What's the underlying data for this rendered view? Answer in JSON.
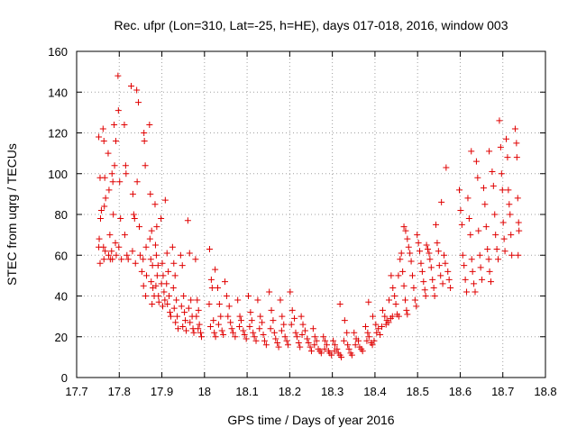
{
  "chart_data": {
    "type": "scatter",
    "title": "Rec. ufpr (Lon=310, Lat=-25, h=HE), days 017-018, 2016, window 003",
    "xlabel": "GPS time / Days of year 2016",
    "ylabel": "STEC from uqrg / TECUs",
    "xlim": [
      17.7,
      18.8
    ],
    "ylim": [
      0,
      160
    ],
    "xticks": [
      "17.7",
      "17.8",
      "17.9",
      "18",
      "18.1",
      "18.2",
      "18.3",
      "18.4",
      "18.5",
      "18.6",
      "18.7",
      "18.8"
    ],
    "yticks": [
      "0",
      "20",
      "40",
      "60",
      "80",
      "100",
      "120",
      "140",
      "160"
    ],
    "grid": true,
    "marker": "plus",
    "color": "#e00000",
    "points": [
      [
        17.752,
        118
      ],
      [
        17.755,
        98
      ],
      [
        17.758,
        82
      ],
      [
        17.756,
        78
      ],
      [
        17.753,
        68
      ],
      [
        17.752,
        64
      ],
      [
        17.755,
        56
      ],
      [
        17.762,
        122
      ],
      [
        17.764,
        116
      ],
      [
        17.766,
        98
      ],
      [
        17.768,
        88
      ],
      [
        17.765,
        84
      ],
      [
        17.767,
        62
      ],
      [
        17.763,
        64
      ],
      [
        17.764,
        58
      ],
      [
        17.774,
        110
      ],
      [
        17.776,
        92
      ],
      [
        17.778,
        70
      ],
      [
        17.775,
        60
      ],
      [
        17.779,
        58
      ],
      [
        17.783,
        100
      ],
      [
        17.785,
        96
      ],
      [
        17.782,
        62
      ],
      [
        17.784,
        58
      ],
      [
        17.788,
        124
      ],
      [
        17.789,
        104
      ],
      [
        17.792,
        116
      ],
      [
        17.786,
        80
      ],
      [
        17.791,
        66
      ],
      [
        17.793,
        60
      ],
      [
        17.797,
        148
      ],
      [
        17.798,
        131
      ],
      [
        17.801,
        96
      ],
      [
        17.803,
        78
      ],
      [
        17.799,
        64
      ],
      [
        17.805,
        58
      ],
      [
        17.812,
        124
      ],
      [
        17.815,
        104
      ],
      [
        17.816,
        100
      ],
      [
        17.813,
        70
      ],
      [
        17.818,
        60
      ],
      [
        17.821,
        58
      ],
      [
        17.828,
        143
      ],
      [
        17.832,
        90
      ],
      [
        17.834,
        80
      ],
      [
        17.836,
        78
      ],
      [
        17.831,
        62
      ],
      [
        17.838,
        56
      ],
      [
        17.841,
        141
      ],
      [
        17.845,
        135
      ],
      [
        17.842,
        96
      ],
      [
        17.847,
        74
      ],
      [
        17.849,
        60
      ],
      [
        17.853,
        52
      ],
      [
        17.858,
        120
      ],
      [
        17.859,
        116
      ],
      [
        17.861,
        104
      ],
      [
        17.863,
        64
      ],
      [
        17.856,
        58
      ],
      [
        17.864,
        50
      ],
      [
        17.857,
        45
      ],
      [
        17.862,
        40
      ],
      [
        17.871,
        124
      ],
      [
        17.873,
        90
      ],
      [
        17.876,
        72
      ],
      [
        17.872,
        68
      ],
      [
        17.874,
        58
      ],
      [
        17.878,
        55
      ],
      [
        17.875,
        47
      ],
      [
        17.879,
        44
      ],
      [
        17.882,
        40
      ],
      [
        17.877,
        36
      ],
      [
        17.884,
        85
      ],
      [
        17.888,
        74
      ],
      [
        17.885,
        65
      ],
      [
        17.887,
        60
      ],
      [
        17.891,
        55
      ],
      [
        17.889,
        50
      ],
      [
        17.886,
        45
      ],
      [
        17.892,
        40
      ],
      [
        17.893,
        37
      ],
      [
        17.898,
        78
      ],
      [
        17.901,
        56
      ],
      [
        17.903,
        50
      ],
      [
        17.899,
        46
      ],
      [
        17.905,
        42
      ],
      [
        17.907,
        38
      ],
      [
        17.902,
        35
      ],
      [
        17.908,
        87
      ],
      [
        17.912,
        61
      ],
      [
        17.915,
        52
      ],
      [
        17.911,
        46
      ],
      [
        17.917,
        40
      ],
      [
        17.913,
        36
      ],
      [
        17.919,
        32
      ],
      [
        17.921,
        30
      ],
      [
        17.925,
        64
      ],
      [
        17.928,
        56
      ],
      [
        17.931,
        50
      ],
      [
        17.927,
        44
      ],
      [
        17.934,
        38
      ],
      [
        17.929,
        34
      ],
      [
        17.936,
        30
      ],
      [
        17.932,
        27
      ],
      [
        17.938,
        24
      ],
      [
        17.944,
        60
      ],
      [
        17.948,
        55
      ],
      [
        17.951,
        40
      ],
      [
        17.946,
        35
      ],
      [
        17.953,
        32
      ],
      [
        17.955,
        28
      ],
      [
        17.949,
        25
      ],
      [
        17.957,
        23
      ],
      [
        17.961,
        77
      ],
      [
        17.965,
        61
      ],
      [
        17.968,
        38
      ],
      [
        17.963,
        34
      ],
      [
        17.971,
        30
      ],
      [
        17.966,
        27
      ],
      [
        17.973,
        24
      ],
      [
        17.975,
        22
      ],
      [
        17.979,
        58
      ],
      [
        17.983,
        38
      ],
      [
        17.986,
        33
      ],
      [
        17.981,
        30
      ],
      [
        17.988,
        26
      ],
      [
        17.985,
        24
      ],
      [
        17.991,
        22
      ],
      [
        17.993,
        20
      ],
      [
        18.012,
        63
      ],
      [
        18.016,
        48
      ],
      [
        18.018,
        44
      ],
      [
        18.011,
        36
      ],
      [
        18.021,
        28
      ],
      [
        18.014,
        25
      ],
      [
        18.023,
        22
      ],
      [
        18.026,
        20
      ],
      [
        18.025,
        53
      ],
      [
        18.031,
        44
      ],
      [
        18.035,
        36
      ],
      [
        18.038,
        30
      ],
      [
        18.033,
        26
      ],
      [
        18.041,
        23
      ],
      [
        18.044,
        21
      ],
      [
        18.048,
        47
      ],
      [
        18.052,
        40
      ],
      [
        18.058,
        35
      ],
      [
        18.055,
        30
      ],
      [
        18.061,
        27
      ],
      [
        18.064,
        24
      ],
      [
        18.067,
        22
      ],
      [
        18.072,
        20
      ],
      [
        18.078,
        38
      ],
      [
        18.083,
        30
      ],
      [
        18.086,
        28
      ],
      [
        18.082,
        25
      ],
      [
        18.091,
        23
      ],
      [
        18.094,
        21
      ],
      [
        18.098,
        19
      ],
      [
        18.103,
        40
      ],
      [
        18.108,
        32
      ],
      [
        18.111,
        28
      ],
      [
        18.106,
        25
      ],
      [
        18.114,
        22
      ],
      [
        18.117,
        20
      ],
      [
        18.121,
        18
      ],
      [
        18.125,
        38
      ],
      [
        18.131,
        30
      ],
      [
        18.135,
        27
      ],
      [
        18.129,
        24
      ],
      [
        18.138,
        21
      ],
      [
        18.141,
        18
      ],
      [
        18.145,
        16
      ],
      [
        18.152,
        42
      ],
      [
        18.157,
        33
      ],
      [
        18.161,
        28
      ],
      [
        18.155,
        24
      ],
      [
        18.164,
        22
      ],
      [
        18.167,
        19
      ],
      [
        18.171,
        17
      ],
      [
        18.174,
        15
      ],
      [
        18.178,
        38
      ],
      [
        18.182,
        30
      ],
      [
        18.186,
        26
      ],
      [
        18.181,
        23
      ],
      [
        18.189,
        20
      ],
      [
        18.193,
        18
      ],
      [
        18.196,
        16
      ],
      [
        18.201,
        42
      ],
      [
        18.206,
        33
      ],
      [
        18.211,
        29
      ],
      [
        18.204,
        26
      ],
      [
        18.214,
        22
      ],
      [
        18.217,
        20
      ],
      [
        18.221,
        17
      ],
      [
        18.224,
        15
      ],
      [
        18.227,
        30
      ],
      [
        18.231,
        26
      ],
      [
        18.236,
        23
      ],
      [
        18.229,
        21
      ],
      [
        18.241,
        19
      ],
      [
        18.244,
        17
      ],
      [
        18.248,
        15
      ],
      [
        18.251,
        13
      ],
      [
        18.255,
        24
      ],
      [
        18.259,
        20
      ],
      [
        18.263,
        18
      ],
      [
        18.258,
        16
      ],
      [
        18.267,
        14
      ],
      [
        18.271,
        13
      ],
      [
        18.274,
        12
      ],
      [
        18.279,
        20
      ],
      [
        18.283,
        18
      ],
      [
        18.287,
        16
      ],
      [
        18.282,
        14
      ],
      [
        18.291,
        13
      ],
      [
        18.294,
        12
      ],
      [
        18.298,
        11
      ],
      [
        18.302,
        18
      ],
      [
        18.306,
        16
      ],
      [
        18.311,
        14
      ],
      [
        18.305,
        13
      ],
      [
        18.314,
        12
      ],
      [
        18.318,
        11
      ],
      [
        18.321,
        10
      ],
      [
        18.318,
        36
      ],
      [
        18.329,
        28
      ],
      [
        18.334,
        22
      ],
      [
        18.327,
        18
      ],
      [
        18.336,
        16
      ],
      [
        18.339,
        14
      ],
      [
        18.343,
        12
      ],
      [
        18.346,
        11
      ],
      [
        18.351,
        22
      ],
      [
        18.356,
        19
      ],
      [
        18.361,
        18
      ],
      [
        18.354,
        16
      ],
      [
        18.364,
        15
      ],
      [
        18.368,
        14
      ],
      [
        18.371,
        13
      ],
      [
        18.378,
        25
      ],
      [
        18.383,
        22
      ],
      [
        18.386,
        20
      ],
      [
        18.381,
        18
      ],
      [
        18.391,
        17
      ],
      [
        18.394,
        16
      ],
      [
        18.398,
        18
      ],
      [
        18.385,
        37
      ],
      [
        18.395,
        30
      ],
      [
        18.402,
        26
      ],
      [
        18.408,
        24
      ],
      [
        18.404,
        22
      ],
      [
        18.412,
        21
      ],
      [
        18.416,
        25
      ],
      [
        18.418,
        33
      ],
      [
        18.423,
        30
      ],
      [
        18.428,
        28
      ],
      [
        18.426,
        26
      ],
      [
        18.432,
        27
      ],
      [
        18.437,
        29
      ],
      [
        18.441,
        30
      ],
      [
        18.433,
        38
      ],
      [
        18.438,
        50
      ],
      [
        18.442,
        44
      ],
      [
        18.446,
        40
      ],
      [
        18.449,
        36
      ],
      [
        18.452,
        31
      ],
      [
        18.456,
        30
      ],
      [
        18.455,
        50
      ],
      [
        18.459,
        58
      ],
      [
        18.462,
        61
      ],
      [
        18.465,
        52
      ],
      [
        18.468,
        45
      ],
      [
        18.471,
        38
      ],
      [
        18.474,
        33
      ],
      [
        18.476,
        31
      ],
      [
        18.468,
        74
      ],
      [
        18.472,
        72
      ],
      [
        18.476,
        68
      ],
      [
        18.479,
        64
      ],
      [
        18.482,
        61
      ],
      [
        18.485,
        57
      ],
      [
        18.488,
        50
      ],
      [
        18.491,
        44
      ],
      [
        18.494,
        38
      ],
      [
        18.497,
        35
      ],
      [
        18.499,
        70
      ],
      [
        18.502,
        66
      ],
      [
        18.505,
        62
      ],
      [
        18.508,
        56
      ],
      [
        18.511,
        52
      ],
      [
        18.514,
        47
      ],
      [
        18.517,
        43
      ],
      [
        18.519,
        40
      ],
      [
        18.521,
        65
      ],
      [
        18.524,
        63
      ],
      [
        18.527,
        61
      ],
      [
        18.529,
        58
      ],
      [
        18.532,
        54
      ],
      [
        18.535,
        48
      ],
      [
        18.538,
        44
      ],
      [
        18.54,
        40
      ],
      [
        18.543,
        75
      ],
      [
        18.546,
        66
      ],
      [
        18.549,
        62
      ],
      [
        18.551,
        55
      ],
      [
        18.554,
        50
      ],
      [
        18.556,
        86
      ],
      [
        18.559,
        46
      ],
      [
        18.562,
        60
      ],
      [
        18.565,
        56
      ],
      [
        18.567,
        103
      ],
      [
        18.571,
        52
      ],
      [
        18.574,
        48
      ],
      [
        18.577,
        44
      ],
      [
        18.598,
        92
      ],
      [
        18.601,
        82
      ],
      [
        18.604,
        75
      ],
      [
        18.606,
        60
      ],
      [
        18.609,
        55
      ],
      [
        18.612,
        48
      ],
      [
        18.615,
        42
      ],
      [
        18.618,
        88
      ],
      [
        18.621,
        78
      ],
      [
        18.624,
        70
      ],
      [
        18.627,
        58
      ],
      [
        18.629,
        52
      ],
      [
        18.632,
        46
      ],
      [
        18.635,
        42
      ],
      [
        18.626,
        111
      ],
      [
        18.638,
        106
      ],
      [
        18.641,
        98
      ],
      [
        18.643,
        72
      ],
      [
        18.646,
        60
      ],
      [
        18.648,
        54
      ],
      [
        18.651,
        48
      ],
      [
        18.655,
        93
      ],
      [
        18.658,
        85
      ],
      [
        18.661,
        74
      ],
      [
        18.664,
        63
      ],
      [
        18.667,
        58
      ],
      [
        18.669,
        52
      ],
      [
        18.672,
        47
      ],
      [
        18.668,
        111
      ],
      [
        18.675,
        101
      ],
      [
        18.678,
        94
      ],
      [
        18.681,
        80
      ],
      [
        18.683,
        70
      ],
      [
        18.686,
        63
      ],
      [
        18.689,
        58
      ],
      [
        18.692,
        126
      ],
      [
        18.695,
        113
      ],
      [
        18.697,
        100
      ],
      [
        18.699,
        92
      ],
      [
        18.701,
        76
      ],
      [
        18.703,
        68
      ],
      [
        18.705,
        62
      ],
      [
        18.708,
        117
      ],
      [
        18.711,
        108
      ],
      [
        18.713,
        92
      ],
      [
        18.715,
        85
      ],
      [
        18.717,
        80
      ],
      [
        18.719,
        70
      ],
      [
        18.721,
        60
      ],
      [
        18.729,
        122
      ],
      [
        18.732,
        115
      ],
      [
        18.733,
        108
      ],
      [
        18.735,
        88
      ],
      [
        18.737,
        76
      ],
      [
        18.738,
        72
      ],
      [
        18.736,
        60
      ]
    ]
  }
}
